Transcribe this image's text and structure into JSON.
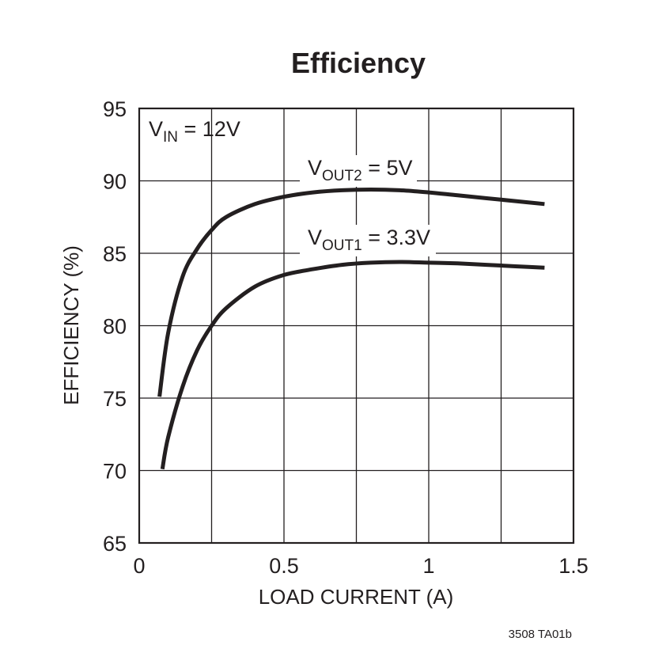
{
  "chart_data": {
    "type": "line",
    "title": "Efficiency",
    "xlabel": "LOAD CURRENT (A)",
    "ylabel": "EFFICIENCY (%)",
    "xlim": [
      0,
      1.5
    ],
    "ylim": [
      65,
      95
    ],
    "x_ticks": [
      0,
      0.25,
      0.5,
      0.75,
      1,
      1.25,
      1.5
    ],
    "x_tick_labels": [
      "0",
      "",
      "0.5",
      "",
      "1",
      "",
      "1.5"
    ],
    "y_ticks": [
      65,
      70,
      75,
      80,
      85,
      90,
      95
    ],
    "y_tick_labels": [
      "65",
      "70",
      "75",
      "80",
      "85",
      "90",
      "95"
    ],
    "grid": true,
    "annotations": {
      "vin": {
        "main": "V",
        "sub": "IN",
        "rest": " = 12V"
      },
      "vout2": {
        "main": "V",
        "sub": "OUT2",
        "rest": " = 5V"
      },
      "vout1": {
        "main": "V",
        "sub": "OUT1",
        "rest": " = 3.3V"
      }
    },
    "series": [
      {
        "name": "VOUT2 = 5V",
        "x": [
          0.07,
          0.1,
          0.15,
          0.2,
          0.25,
          0.3,
          0.4,
          0.5,
          0.6,
          0.7,
          0.8,
          0.9,
          1.0,
          1.1,
          1.2,
          1.3,
          1.4
        ],
        "y": [
          75.1,
          79.5,
          83.4,
          85.3,
          86.6,
          87.5,
          88.4,
          88.9,
          89.2,
          89.35,
          89.4,
          89.35,
          89.2,
          89.0,
          88.8,
          88.6,
          88.4
        ]
      },
      {
        "name": "VOUT1 = 3.3V",
        "x": [
          0.08,
          0.1,
          0.15,
          0.2,
          0.25,
          0.3,
          0.4,
          0.5,
          0.6,
          0.7,
          0.8,
          0.9,
          1.0,
          1.1,
          1.2,
          1.3,
          1.4
        ],
        "y": [
          70.1,
          72.3,
          75.8,
          78.3,
          80.0,
          81.2,
          82.7,
          83.5,
          83.9,
          84.2,
          84.35,
          84.4,
          84.35,
          84.3,
          84.2,
          84.1,
          84.0
        ]
      }
    ]
  },
  "figure_code": "3508 TA01b"
}
